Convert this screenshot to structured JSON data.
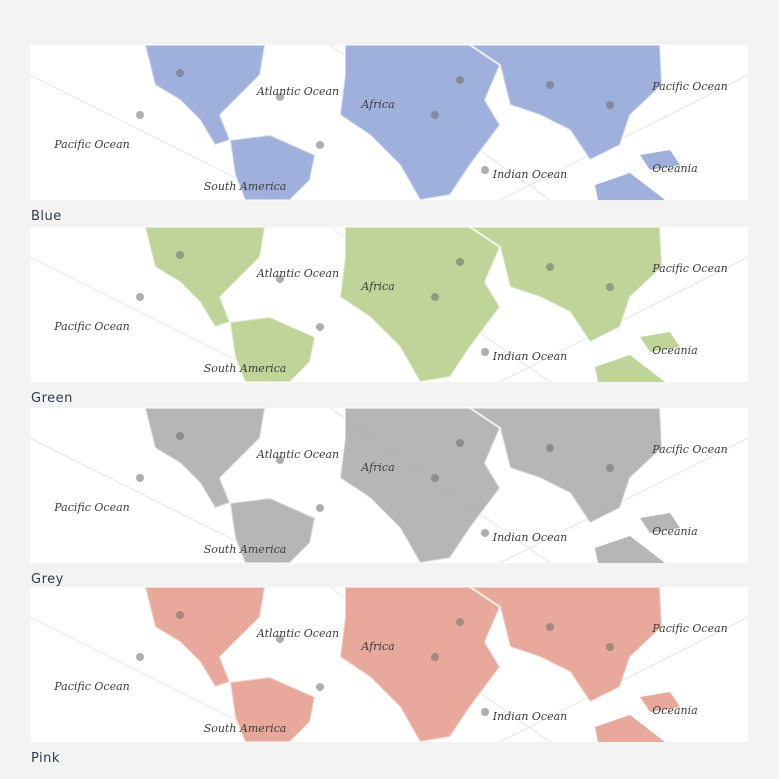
{
  "map_labels": [
    "Pacific Ocean",
    "Atlantic Ocean",
    "Africa",
    "Indian Ocean",
    "South America",
    "Pacific Ocean",
    "Oceania"
  ],
  "variants": [
    {
      "name": "Blue",
      "color": "#8fa2d6"
    },
    {
      "name": "Green",
      "color": "#b3cd86"
    },
    {
      "name": "Grey",
      "color": "#a9a9a9"
    },
    {
      "name": "Pink",
      "color": "#e49a8b"
    }
  ]
}
